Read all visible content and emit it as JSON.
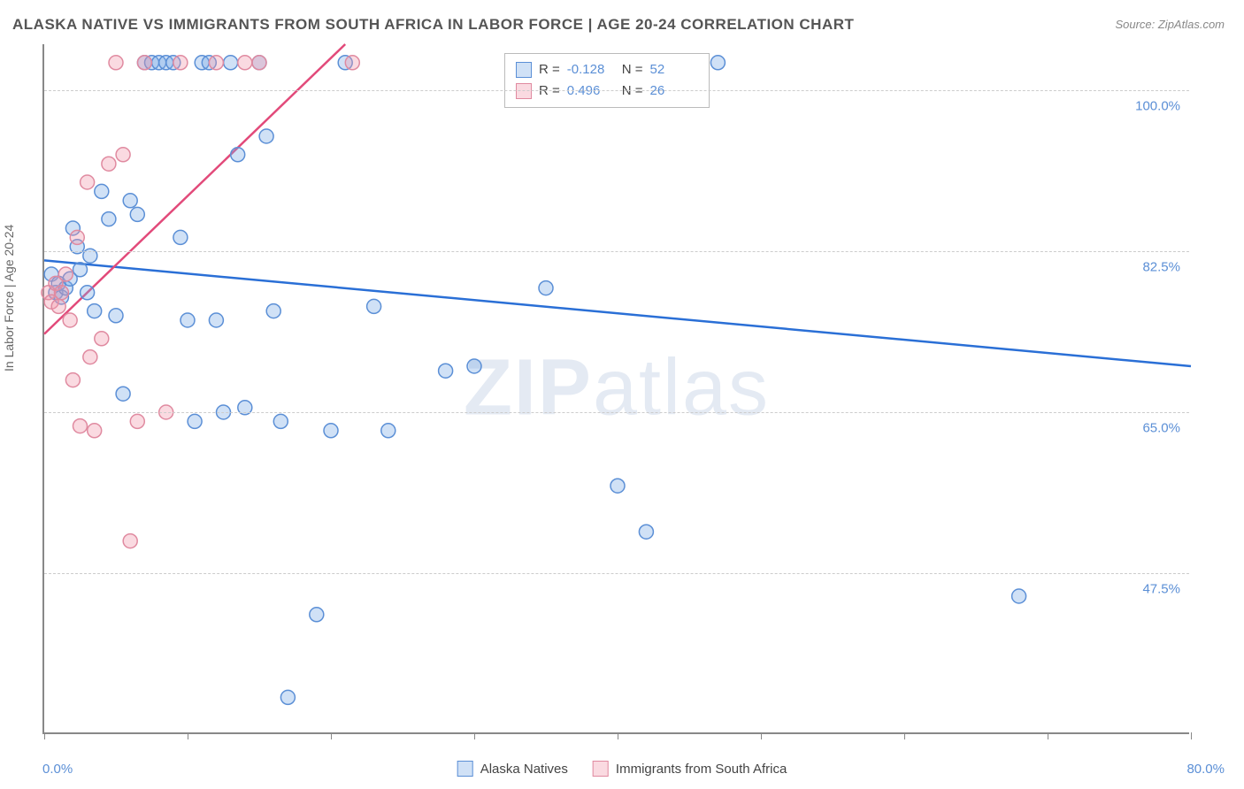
{
  "title": "ALASKA NATIVE VS IMMIGRANTS FROM SOUTH AFRICA IN LABOR FORCE | AGE 20-24 CORRELATION CHART",
  "source": "Source: ZipAtlas.com",
  "y_axis_label": "In Labor Force | Age 20-24",
  "watermark_bold": "ZIP",
  "watermark_light": "atlas",
  "chart": {
    "type": "scatter",
    "background_color": "#ffffff",
    "grid_color": "#cccccc",
    "axis_color": "#888888",
    "tick_label_color": "#5b8fd6",
    "marker_radius": 8,
    "marker_stroke_width": 1.5,
    "trend_line_width": 2.5,
    "xlim": [
      0,
      80
    ],
    "ylim": [
      30,
      105
    ],
    "x_ticks": [
      0,
      10,
      20,
      30,
      40,
      50,
      60,
      70,
      80
    ],
    "y_grid": [
      47.5,
      65.0,
      82.5,
      100.0
    ],
    "y_tick_labels": [
      "47.5%",
      "65.0%",
      "82.5%",
      "100.0%"
    ],
    "x_left_label": "0.0%",
    "x_right_label": "80.0%",
    "series": [
      {
        "name": "Alaska Natives",
        "r": "-0.128",
        "n": "52",
        "color_fill": "rgba(120, 170, 230, 0.35)",
        "color_stroke": "#5b8fd6",
        "trend_color": "#2a6fd6",
        "trend": {
          "x1": 0,
          "y1": 81.5,
          "x2": 80,
          "y2": 70.0
        },
        "points": [
          [
            0.5,
            80
          ],
          [
            0.8,
            78
          ],
          [
            1.0,
            79
          ],
          [
            1.2,
            77.5
          ],
          [
            1.5,
            78.5
          ],
          [
            1.8,
            79.5
          ],
          [
            2.0,
            85
          ],
          [
            2.3,
            83
          ],
          [
            2.5,
            80.5
          ],
          [
            3.0,
            78
          ],
          [
            3.2,
            82
          ],
          [
            3.5,
            76
          ],
          [
            4.0,
            89
          ],
          [
            4.5,
            86
          ],
          [
            5.0,
            75.5
          ],
          [
            5.5,
            67
          ],
          [
            6.0,
            88
          ],
          [
            6.5,
            86.5
          ],
          [
            7.0,
            103
          ],
          [
            7.5,
            103
          ],
          [
            8.0,
            103
          ],
          [
            8.5,
            103
          ],
          [
            9.0,
            103
          ],
          [
            9.5,
            84
          ],
          [
            10.0,
            75
          ],
          [
            10.5,
            64
          ],
          [
            11.0,
            103
          ],
          [
            11.5,
            103
          ],
          [
            12.0,
            75
          ],
          [
            12.5,
            65
          ],
          [
            13.0,
            103
          ],
          [
            13.5,
            93
          ],
          [
            14.0,
            65.5
          ],
          [
            15.0,
            103
          ],
          [
            15.5,
            95
          ],
          [
            16.0,
            76
          ],
          [
            16.5,
            64
          ],
          [
            17.0,
            34
          ],
          [
            19.0,
            43
          ],
          [
            20.0,
            63
          ],
          [
            21.0,
            103
          ],
          [
            23.0,
            76.5
          ],
          [
            24.0,
            63
          ],
          [
            28.0,
            69.5
          ],
          [
            30.0,
            70
          ],
          [
            35.0,
            78.5
          ],
          [
            40.0,
            57
          ],
          [
            40.5,
            103
          ],
          [
            42.0,
            52
          ],
          [
            44.0,
            103
          ],
          [
            47.0,
            103
          ],
          [
            68.0,
            45
          ]
        ]
      },
      {
        "name": "Immigrants from South Africa",
        "r": "0.496",
        "n": "26",
        "color_fill": "rgba(240, 150, 170, 0.35)",
        "color_stroke": "#e08aa0",
        "trend_color": "#e24a7a",
        "trend": {
          "x1": 0,
          "y1": 73.5,
          "x2": 21,
          "y2": 105
        },
        "points": [
          [
            0.3,
            78
          ],
          [
            0.5,
            77
          ],
          [
            0.8,
            79
          ],
          [
            1.0,
            76.5
          ],
          [
            1.2,
            78
          ],
          [
            1.5,
            80
          ],
          [
            1.8,
            75
          ],
          [
            2.0,
            68.5
          ],
          [
            2.3,
            84
          ],
          [
            2.5,
            63.5
          ],
          [
            3.0,
            90
          ],
          [
            3.2,
            71
          ],
          [
            3.5,
            63
          ],
          [
            4.0,
            73
          ],
          [
            4.5,
            92
          ],
          [
            5.0,
            103
          ],
          [
            5.5,
            93
          ],
          [
            6.0,
            51
          ],
          [
            6.5,
            64
          ],
          [
            7.0,
            103
          ],
          [
            8.5,
            65
          ],
          [
            9.5,
            103
          ],
          [
            12.0,
            103
          ],
          [
            14.0,
            103
          ],
          [
            15.0,
            103
          ],
          [
            21.5,
            103
          ]
        ]
      }
    ],
    "legend_top": {
      "r_label": "R =",
      "n_label": "N ="
    },
    "legend_bottom_labels": [
      "Alaska Natives",
      "Immigrants from South Africa"
    ]
  }
}
